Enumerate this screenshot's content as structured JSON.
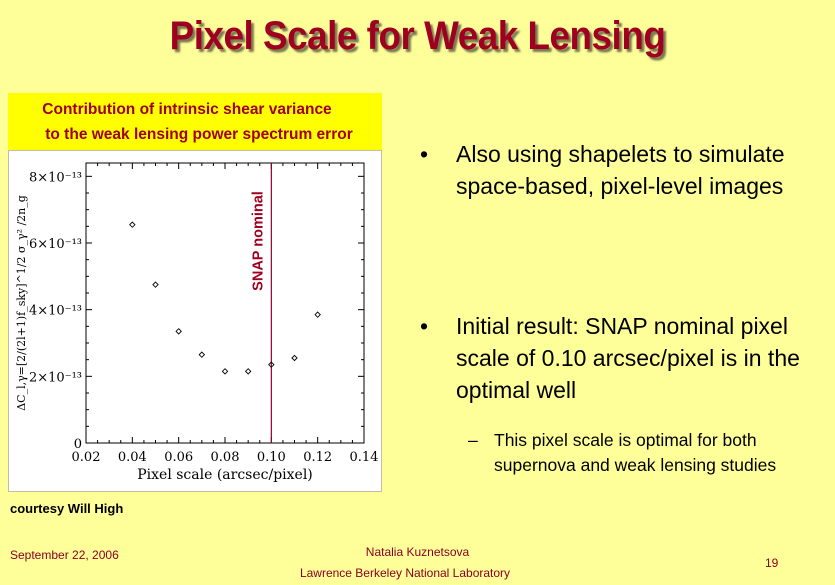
{
  "title": "Pixel Scale for Weak Lensing",
  "figure_caption": {
    "line1": "Contribution of intrinsic shear variance",
    "line2": "to the weak lensing power spectrum error"
  },
  "credit": "courtesy Will High",
  "bullets": [
    "Also using shapelets to simulate space-based, pixel-level images",
    "Initial result: SNAP nominal pixel scale of 0.10 arcsec/pixel is in the optimal well"
  ],
  "sub_bullet": "This pixel scale is optimal for both supernova and weak lensing studies",
  "footer": {
    "date": "September 22, 2006",
    "author": "Natalia Kuznetsova",
    "lab": "Lawrence Berkeley National Laboratory",
    "page": "19"
  },
  "chart_data": {
    "type": "scatter",
    "xlabel": "Pixel scale (arcsec/pixel)",
    "ylabel": "ΔC_l,γ=[2/(2l+1)f_sky]^1/2 σ_γ² /2n_g",
    "xlim": [
      0.02,
      0.14
    ],
    "ylim": [
      0,
      8.4e-13
    ],
    "xticks": [
      "0.02",
      "0.04",
      "0.06",
      "0.08",
      "0.10",
      "0.12",
      "0.14"
    ],
    "yticks": [
      {
        "value": 0,
        "label": "0"
      },
      {
        "value": 2e-13,
        "label": "2×10⁻¹³"
      },
      {
        "value": 4e-13,
        "label": "4×10⁻¹³"
      },
      {
        "value": 6e-13,
        "label": "6×10⁻¹³"
      },
      {
        "value": 8e-13,
        "label": "8×10⁻¹³"
      }
    ],
    "x": [
      0.04,
      0.05,
      0.06,
      0.07,
      0.08,
      0.09,
      0.1,
      0.11,
      0.12
    ],
    "y": [
      6.55e-13,
      4.75e-13,
      3.35e-13,
      2.65e-13,
      2.15e-13,
      2.15e-13,
      2.35e-13,
      2.55e-13,
      3.85e-13
    ],
    "marker": "diamond",
    "vline": {
      "x": 0.1,
      "label": "SNAP nominal",
      "color": "#8b0030"
    },
    "grid": false
  }
}
